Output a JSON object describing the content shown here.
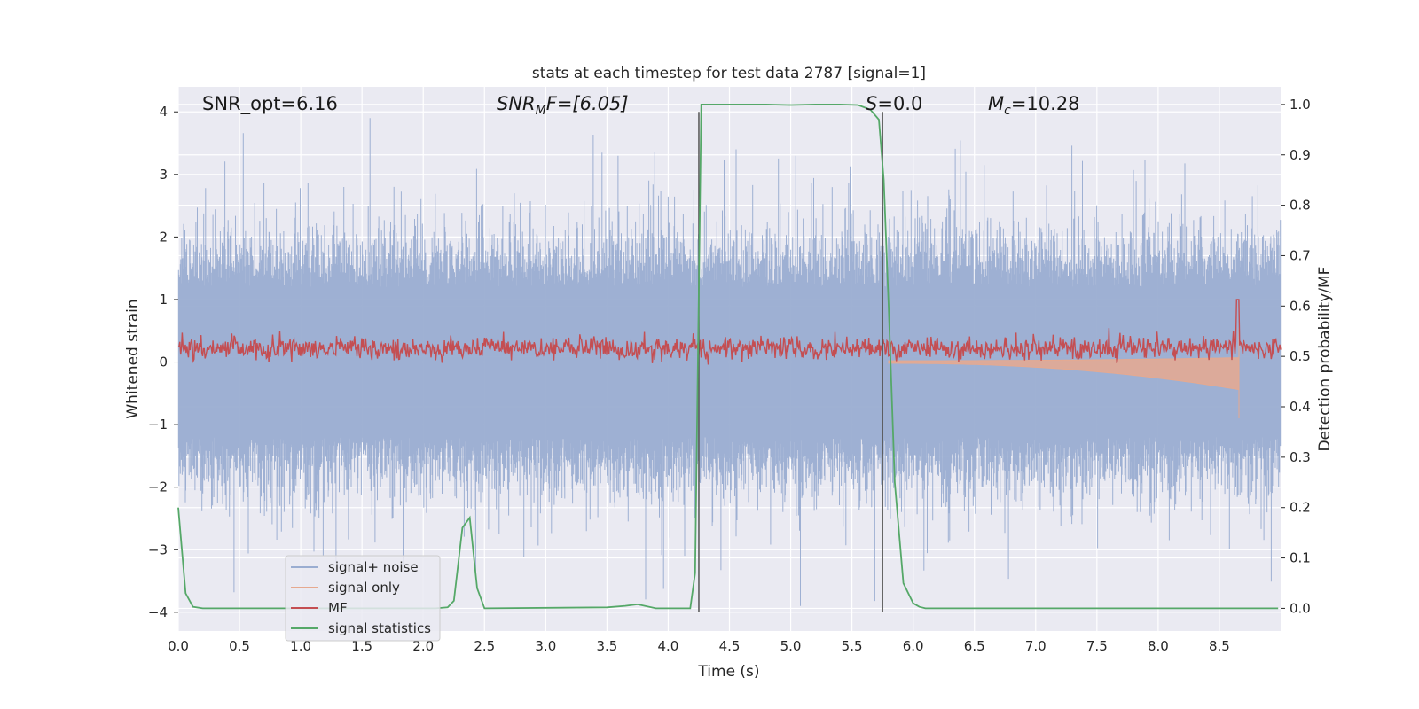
{
  "chart_data": {
    "type": "line",
    "title": "stats at each timestep for test data 2787 [signal=1]",
    "xlabel": "Time (s)",
    "ylabel": "Whitened strain",
    "ylabel_right": "Detection probability/MF",
    "xlim": [
      0,
      9
    ],
    "ylim": [
      -4.3,
      4.4
    ],
    "ylim_right": [
      -0.045,
      1.035
    ],
    "x_ticks": [
      0.0,
      0.5,
      1.0,
      1.5,
      2.0,
      2.5,
      3.0,
      3.5,
      4.0,
      4.5,
      5.0,
      5.5,
      6.0,
      6.5,
      7.0,
      7.5,
      8.0,
      8.5
    ],
    "x_tick_labels": [
      "0.0",
      "0.5",
      "1.0",
      "1.5",
      "2.0",
      "2.5",
      "3.0",
      "3.5",
      "4.0",
      "4.5",
      "5.0",
      "5.5",
      "6.0",
      "6.5",
      "7.0",
      "7.5",
      "8.0",
      "8.5"
    ],
    "y_ticks": [
      4,
      3,
      2,
      1,
      0,
      -1,
      -2,
      -3,
      -4
    ],
    "y_tick_labels": [
      "4",
      "3",
      "2",
      "1",
      "0",
      "−1",
      "−2",
      "−3",
      "−4"
    ],
    "y_right_ticks": [
      1.0,
      0.9,
      0.8,
      0.7,
      0.6,
      0.5,
      0.4,
      0.3,
      0.2,
      0.1,
      0.0
    ],
    "y_right_tick_labels": [
      "1.0",
      "0.9",
      "0.8",
      "0.7",
      "0.6",
      "0.5",
      "0.4",
      "0.3",
      "0.2",
      "0.1",
      "0.0"
    ],
    "annotations": {
      "snr_opt": "SNR_opt=6.16",
      "snr_mf_prefix": "SNR",
      "snr_mf_sub": "M",
      "snr_mf_rest": "F=[6.05]",
      "s_label": "S",
      "s_value": "=0.0",
      "mc_label": "M",
      "mc_sub": "c",
      "mc_value": "=10.28"
    },
    "vertical_lines_x": [
      4.25,
      5.75
    ],
    "vertical_lines_range": [
      -4,
      4
    ],
    "series": [
      {
        "name": "signal+ noise",
        "color": "#9aadd1",
        "axis": "left",
        "kind": "noise",
        "amplitude_range": [
          -4,
          4
        ]
      },
      {
        "name": "signal only",
        "color": "#e6a98f",
        "axis": "left",
        "kind": "chirp",
        "start": 5.8,
        "end": 8.66,
        "peak_min": -0.9,
        "peak_max": 0.55
      },
      {
        "name": "MF",
        "color": "#c44e52",
        "axis": "left",
        "kind": "band",
        "mean": 0.22,
        "amplitude": 0.3,
        "spike_x": 8.65,
        "spike_y": 1.0
      },
      {
        "name": "signal statistics",
        "color": "#55a868",
        "axis": "right",
        "x": [
          0.0,
          0.06,
          0.12,
          0.2,
          2.1,
          2.2,
          2.25,
          2.32,
          2.38,
          2.44,
          2.5,
          3.5,
          3.65,
          3.75,
          3.9,
          4.18,
          4.22,
          4.27,
          4.35,
          4.8,
          5.0,
          5.2,
          5.4,
          5.55,
          5.65,
          5.72,
          5.76,
          5.8,
          5.85,
          5.92,
          6.0,
          6.05,
          6.1,
          6.2,
          8.98
        ],
        "y": [
          0.2,
          0.03,
          0.003,
          0.0,
          0.0,
          0.002,
          0.015,
          0.16,
          0.18,
          0.04,
          0.0,
          0.002,
          0.005,
          0.008,
          0.0,
          0.0,
          0.07,
          1.0,
          1.0,
          1.0,
          0.999,
          1.0,
          1.0,
          0.999,
          0.99,
          0.97,
          0.85,
          0.6,
          0.25,
          0.05,
          0.01,
          0.003,
          0.0,
          0.0,
          0.0
        ]
      }
    ],
    "legend": {
      "placement": "lower-left",
      "entries": [
        "signal+ noise",
        "signal only",
        "MF",
        "signal statistics"
      ]
    },
    "grid": true
  }
}
